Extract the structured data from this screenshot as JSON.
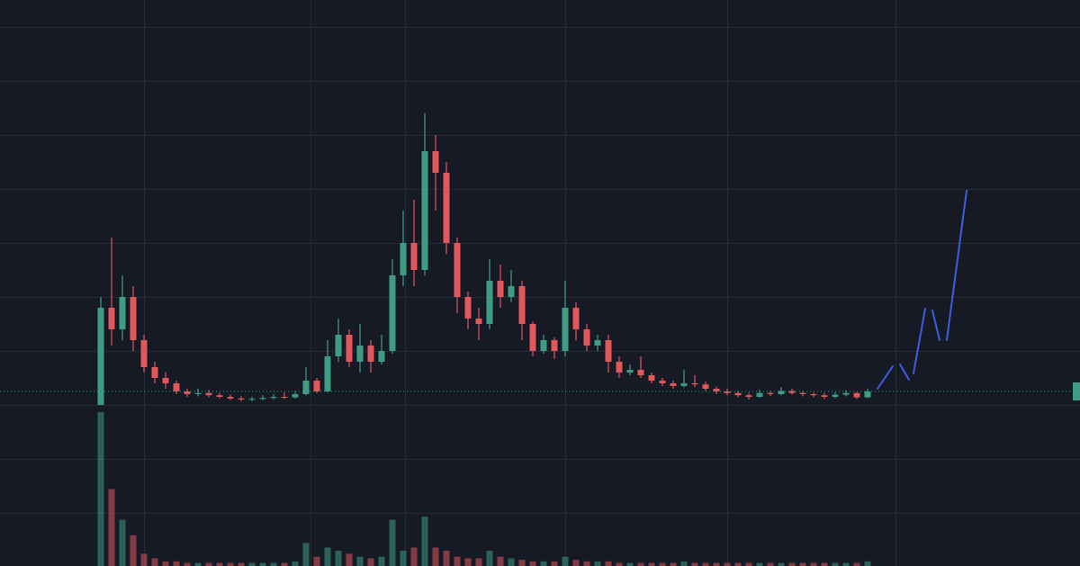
{
  "chart_data": {
    "type": "candlestick",
    "x": [
      14,
      15.5,
      17,
      18.5,
      20,
      21.5,
      23,
      24.5,
      26,
      27.5,
      29,
      30.5,
      32,
      33.5,
      35,
      36.5,
      38,
      39.5,
      41,
      42.5,
      44,
      45.5,
      47,
      48.5,
      50,
      51.5,
      53,
      54.5,
      56,
      57.5,
      59,
      60.5,
      62,
      63.5,
      65,
      66.5,
      68,
      69.5,
      71,
      72.5,
      74,
      75.5,
      77,
      78.5,
      80,
      81.5,
      83,
      84.5,
      86,
      87.5,
      89,
      90.5,
      92,
      93.5,
      95,
      96.5,
      98,
      99.5,
      101,
      102.5,
      104,
      105.5,
      107,
      108.5,
      110,
      111.5,
      113,
      114.5,
      116,
      117.5,
      119,
      120.5
    ],
    "open": [
      0,
      18,
      14,
      20,
      12,
      7,
      5,
      4,
      2.5,
      2,
      2.2,
      1.8,
      1.5,
      1.2,
      1.0,
      1.1,
      1.3,
      1.5,
      1.4,
      2.0,
      4.5,
      2.5,
      9,
      13,
      8,
      11,
      8,
      10,
      24,
      30,
      25,
      47,
      43,
      30,
      20,
      16,
      15,
      23,
      20,
      22,
      15,
      10,
      12,
      10,
      18,
      14,
      11,
      12,
      8,
      6,
      6.5,
      5.5,
      4.5,
      4,
      3.5,
      4,
      3.8,
      3,
      2.5,
      2.2,
      1.8,
      1.5,
      2.2,
      2.0,
      2.6,
      2.2,
      2.0,
      1.8,
      1.5,
      1.9,
      2.2,
      1.4
    ],
    "high": [
      20,
      31,
      24,
      22,
      13,
      8,
      6,
      4.5,
      3,
      3,
      2.8,
      2.2,
      1.9,
      1.6,
      1.5,
      1.8,
      2.0,
      2.3,
      2.6,
      7,
      5,
      12,
      16,
      14,
      15,
      12,
      13,
      27,
      36,
      38,
      54,
      50,
      45,
      31,
      21,
      18,
      27,
      26,
      25,
      23,
      15.5,
      13,
      12.5,
      23,
      19,
      15,
      13,
      13,
      9,
      7.5,
      9,
      6,
      5,
      4.5,
      6.5,
      5.5,
      4.3,
      3.4,
      3,
      2.6,
      2.2,
      2.8,
      2.6,
      3.3,
      3.0,
      2.5,
      2.3,
      2.2,
      2.4,
      2.7,
      2.4,
      3.0
    ],
    "low": [
      0,
      11,
      12,
      10,
      6,
      4,
      3,
      2,
      1.5,
      1.6,
      1.4,
      1.2,
      0.9,
      0.7,
      0.7,
      0.9,
      1.0,
      1.1,
      1.2,
      1.8,
      2.2,
      2.3,
      8,
      7,
      6,
      6,
      7.5,
      9.5,
      22,
      22,
      24,
      36,
      28,
      17,
      14,
      12,
      14,
      18,
      19,
      12,
      9,
      9.5,
      8.5,
      9,
      12,
      10,
      10,
      6,
      5,
      5.5,
      5,
      4,
      3.5,
      3,
      3.2,
      3.3,
      2.6,
      2,
      1.8,
      1.4,
      1.0,
      1.3,
      1.6,
      1.8,
      1.9,
      1.6,
      1.4,
      1.1,
      1.2,
      1.6,
      1.1,
      1.3
    ],
    "close": [
      18,
      14,
      20,
      12,
      7,
      5,
      4,
      2.5,
      2,
      2.2,
      1.8,
      1.5,
      1.2,
      1.0,
      1.1,
      1.3,
      1.5,
      1.4,
      2.0,
      4.5,
      2.5,
      9,
      13,
      8,
      11,
      8,
      10,
      24,
      30,
      25,
      47,
      43,
      30,
      20,
      16,
      15,
      23,
      20,
      22,
      15,
      10,
      12,
      10,
      18,
      14,
      11,
      12,
      8,
      6,
      6.5,
      5.5,
      4.5,
      4,
      3.5,
      4,
      3.8,
      3,
      2.5,
      2.2,
      1.8,
      1.5,
      2.2,
      2.0,
      2.6,
      2.2,
      2.0,
      1.8,
      1.5,
      1.9,
      2.2,
      1.4,
      2.5
    ],
    "volume": [
      100,
      50,
      30,
      20,
      8,
      5,
      3,
      3,
      2,
      2,
      2,
      2,
      2,
      2,
      2,
      2,
      2,
      2,
      3,
      15,
      6,
      12,
      10,
      8,
      6,
      5,
      6,
      30,
      10,
      12,
      32,
      12,
      10,
      6,
      5,
      5,
      10,
      6,
      5,
      4,
      3,
      3,
      3,
      6,
      4,
      3,
      3,
      3,
      2,
      2,
      2,
      2,
      2,
      2,
      3,
      2,
      2,
      2,
      2,
      2,
      2,
      2,
      2,
      2,
      2,
      2,
      2,
      2,
      2,
      2,
      2,
      3
    ],
    "up_color": "#3f9c84",
    "down_color": "#e0585c",
    "xlim": [
      0,
      150
    ],
    "xticks": [
      20,
      43.125,
      56.25,
      78.5,
      101,
      124.375
    ],
    "ylim": [
      -30,
      75
    ],
    "yticks": [
      -20,
      -10,
      0,
      10,
      20,
      30,
      40,
      50,
      60,
      70
    ],
    "y2lim": [
      0,
      100
    ],
    "grid": true
  }
}
